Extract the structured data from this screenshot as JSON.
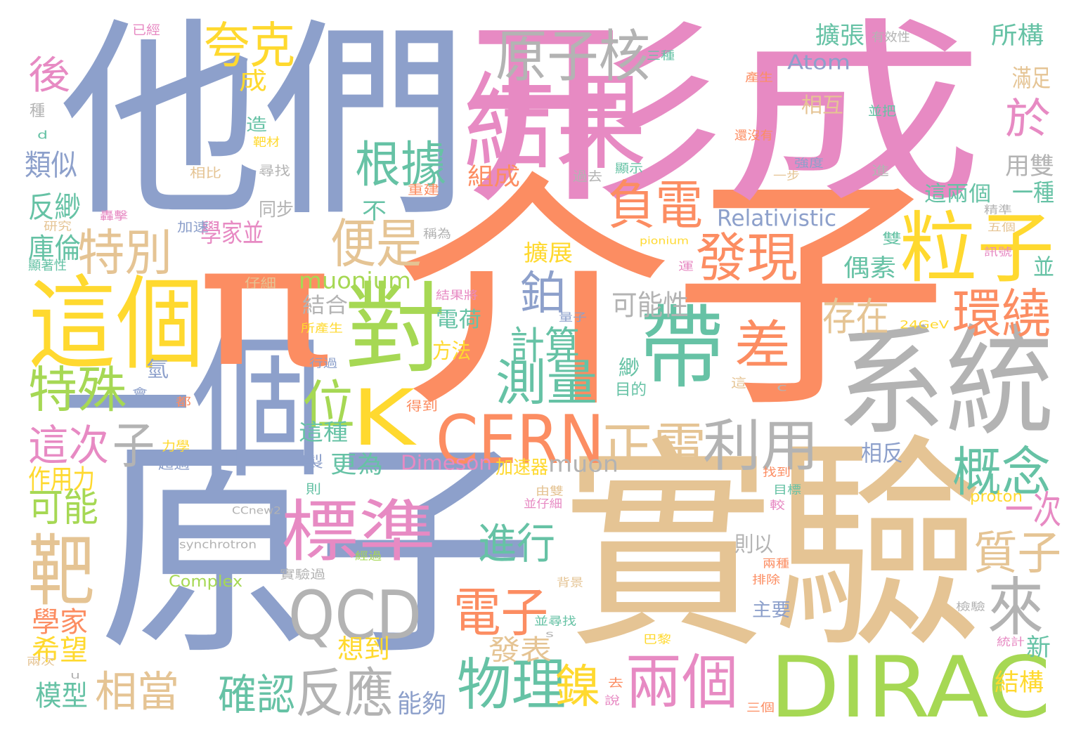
{
  "palette": {
    "blue": "#8da0cb",
    "orange": "#fc8d62",
    "green": "#66c2a5",
    "pink": "#e78ac3",
    "lime": "#a6d854",
    "yellow": "#ffd92f",
    "tan": "#e5c494",
    "gray": "#b3b3b3"
  },
  "words": [
    {
      "text": "介子",
      "color": "orange"
    },
    {
      "text": "原子",
      "color": "blue"
    },
    {
      "text": "他們",
      "color": "blue"
    },
    {
      "text": "形成",
      "color": "pink"
    },
    {
      "text": "實驗",
      "color": "tan"
    },
    {
      "text": "系統",
      "color": "gray"
    },
    {
      "text": "一個",
      "color": "blue"
    },
    {
      "text": "π",
      "color": "orange"
    },
    {
      "text": "結果",
      "color": "pink"
    },
    {
      "text": "這個",
      "color": "yellow"
    },
    {
      "text": "DIRAC",
      "color": "lime"
    },
    {
      "text": "對",
      "color": "lime"
    },
    {
      "text": "帶",
      "color": "green"
    },
    {
      "text": "K",
      "color": "yellow"
    },
    {
      "text": "粒子",
      "color": "yellow"
    },
    {
      "text": "CERN",
      "color": "orange"
    },
    {
      "text": "QCD",
      "color": "gray"
    },
    {
      "text": "標準",
      "color": "pink"
    },
    {
      "text": "靶",
      "color": "tan"
    },
    {
      "text": "兩個",
      "color": "pink"
    },
    {
      "text": "原子核",
      "color": "gray"
    },
    {
      "text": "根據",
      "color": "green"
    },
    {
      "text": "便是",
      "color": "tan"
    },
    {
      "text": "負電",
      "color": "orange"
    },
    {
      "text": "發現",
      "color": "orange"
    },
    {
      "text": "環繞",
      "color": "orange"
    },
    {
      "text": "差",
      "color": "orange"
    },
    {
      "text": "特別",
      "color": "tan"
    },
    {
      "text": "特殊",
      "color": "lime"
    },
    {
      "text": "位",
      "color": "lime"
    },
    {
      "text": "利用",
      "color": "gray"
    },
    {
      "text": "正電",
      "color": "tan"
    },
    {
      "text": "電子",
      "color": "orange"
    },
    {
      "text": "物理",
      "color": "green"
    },
    {
      "text": "反應",
      "color": "gray"
    },
    {
      "text": "概念",
      "color": "green"
    },
    {
      "text": "來",
      "color": "gray"
    },
    {
      "text": "夸克",
      "color": "yellow"
    },
    {
      "text": "於",
      "color": "pink"
    },
    {
      "text": "子",
      "color": "gray"
    },
    {
      "text": "測量",
      "color": "green"
    },
    {
      "text": "鉑",
      "color": "blue"
    },
    {
      "text": "鎳",
      "color": "yellow"
    },
    {
      "text": "相當",
      "color": "tan"
    },
    {
      "text": "確認",
      "color": "green"
    },
    {
      "text": "質子",
      "color": "tan"
    },
    {
      "text": "進行",
      "color": "green"
    },
    {
      "text": "這次",
      "color": "pink"
    },
    {
      "text": "可能",
      "color": "lime"
    },
    {
      "text": "計算",
      "color": "green"
    },
    {
      "text": "存在",
      "color": "tan"
    },
    {
      "text": "一次",
      "color": "pink"
    },
    {
      "text": "後",
      "color": "pink"
    },
    {
      "text": "類似",
      "color": "blue"
    },
    {
      "text": "反緲",
      "color": "green"
    },
    {
      "text": "學家並",
      "color": "pink"
    },
    {
      "text": "庫倫",
      "color": "green"
    },
    {
      "text": "顯著性",
      "color": "green"
    },
    {
      "text": "作用力",
      "color": "yellow"
    },
    {
      "text": "學家",
      "color": "orange"
    },
    {
      "text": "希望",
      "color": "yellow"
    },
    {
      "text": "模型",
      "color": "green"
    },
    {
      "text": "發表",
      "color": "tan"
    },
    {
      "text": "能夠",
      "color": "blue"
    },
    {
      "text": "想到",
      "color": "yellow"
    },
    {
      "text": "可能性",
      "color": "gray"
    },
    {
      "text": "muonium",
      "color": "lime"
    },
    {
      "text": "Relativistic",
      "color": "blue"
    },
    {
      "text": "Dimeson",
      "color": "pink"
    },
    {
      "text": "muon",
      "color": "gray"
    },
    {
      "text": "Atom",
      "color": "blue"
    },
    {
      "text": "Complex",
      "color": "lime"
    },
    {
      "text": "synchrotron",
      "color": "gray"
    },
    {
      "text": "CCnew2",
      "color": "gray"
    },
    {
      "text": "proton",
      "color": "yellow"
    },
    {
      "text": "pionium",
      "color": "yellow"
    },
    {
      "text": "24GeV",
      "color": "yellow"
    },
    {
      "text": "擴張",
      "color": "green"
    },
    {
      "text": "所構",
      "color": "green"
    },
    {
      "text": "滿足",
      "color": "tan"
    },
    {
      "text": "相互",
      "color": "tan"
    },
    {
      "text": "用雙",
      "color": "gray"
    },
    {
      "text": "一種",
      "color": "green"
    },
    {
      "text": "這兩個",
      "color": "green"
    },
    {
      "text": "並",
      "color": "green"
    },
    {
      "text": "偶素",
      "color": "green"
    },
    {
      "text": "結構",
      "color": "yellow"
    },
    {
      "text": "新",
      "color": "green"
    },
    {
      "text": "組成",
      "color": "orange"
    },
    {
      "text": "擴展",
      "color": "yellow"
    },
    {
      "text": "電荷",
      "color": "green"
    },
    {
      "text": "結合",
      "color": "gray"
    },
    {
      "text": "方法",
      "color": "yellow"
    },
    {
      "text": "這種",
      "color": "green"
    },
    {
      "text": "更為",
      "color": "green"
    },
    {
      "text": "相反",
      "color": "blue"
    },
    {
      "text": "則以",
      "color": "gray"
    },
    {
      "text": "緲",
      "color": "green"
    },
    {
      "text": "氫",
      "color": "blue"
    },
    {
      "text": "加速器",
      "color": "yellow"
    },
    {
      "text": "不",
      "color": "green"
    },
    {
      "text": "成",
      "color": "yellow"
    },
    {
      "text": "造",
      "color": "green"
    },
    {
      "text": "同步",
      "color": "gray"
    },
    {
      "text": "主要",
      "color": "blue"
    },
    {
      "text": "已經",
      "color": "pink"
    },
    {
      "text": "種",
      "color": "gray"
    },
    {
      "text": "d",
      "color": "green"
    },
    {
      "text": "研究",
      "color": "tan"
    },
    {
      "text": "轟擊",
      "color": "pink"
    },
    {
      "text": "加速",
      "color": "blue"
    },
    {
      "text": "仔細",
      "color": "tan"
    },
    {
      "text": "稱為",
      "color": "gray"
    },
    {
      "text": "尋找",
      "color": "gray"
    },
    {
      "text": "相比",
      "color": "tan"
    },
    {
      "text": "靶材",
      "color": "yellow"
    },
    {
      "text": "重建",
      "color": "orange"
    },
    {
      "text": "過去",
      "color": "gray"
    },
    {
      "text": "顯示",
      "color": "green"
    },
    {
      "text": "還沒有",
      "color": "orange"
    },
    {
      "text": "產生",
      "color": "orange"
    },
    {
      "text": "並把",
      "color": "green"
    },
    {
      "text": "有效性",
      "color": "gray"
    },
    {
      "text": "三種",
      "color": "green"
    },
    {
      "text": "強度",
      "color": "blue"
    },
    {
      "text": "一步",
      "color": "tan"
    },
    {
      "text": "進",
      "color": "gray"
    },
    {
      "text": "精準",
      "color": "gray"
    },
    {
      "text": "五個",
      "color": "tan"
    },
    {
      "text": "雙",
      "color": "green"
    },
    {
      "text": "訊號",
      "color": "pink"
    },
    {
      "text": "運",
      "color": "pink"
    },
    {
      "text": "量子",
      "color": "blue"
    },
    {
      "text": "結果將",
      "color": "pink"
    },
    {
      "text": "所產生",
      "color": "yellow"
    },
    {
      "text": "行過",
      "color": "blue"
    },
    {
      "text": "會",
      "color": "blue"
    },
    {
      "text": "都",
      "color": "orange"
    },
    {
      "text": "得到",
      "color": "orange"
    },
    {
      "text": "目的",
      "color": "green"
    },
    {
      "text": "這",
      "color": "tan"
    },
    {
      "text": "c",
      "color": "gray"
    },
    {
      "text": "力學",
      "color": "yellow"
    },
    {
      "text": "超過",
      "color": "blue"
    },
    {
      "text": "製",
      "color": "blue"
    },
    {
      "text": "則",
      "color": "green"
    },
    {
      "text": "找到",
      "color": "orange"
    },
    {
      "text": "目標",
      "color": "green"
    },
    {
      "text": "由雙",
      "color": "tan"
    },
    {
      "text": "並仔細",
      "color": "pink"
    },
    {
      "text": "較",
      "color": "pink"
    },
    {
      "text": "實驗過",
      "color": "gray"
    },
    {
      "text": "背景",
      "color": "tan"
    },
    {
      "text": "兩種",
      "color": "orange"
    },
    {
      "text": "排除",
      "color": "orange"
    },
    {
      "text": "檢驗",
      "color": "gray"
    },
    {
      "text": "統計",
      "color": "pink"
    },
    {
      "text": "並尋找",
      "color": "green"
    },
    {
      "text": "s",
      "color": "gray"
    },
    {
      "text": "u",
      "color": "gray"
    },
    {
      "text": "兩次",
      "color": "tan"
    },
    {
      "text": "巴黎",
      "color": "yellow"
    },
    {
      "text": "去",
      "color": "orange"
    },
    {
      "text": "說",
      "color": "pink"
    },
    {
      "text": "三個",
      "color": "orange"
    },
    {
      "text": "經過",
      "color": "lime"
    }
  ]
}
